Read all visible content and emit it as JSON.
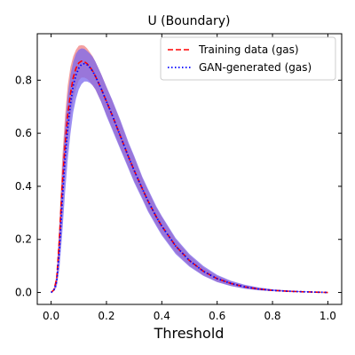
{
  "chart_data": {
    "type": "line",
    "title": "U (Boundary)",
    "xlabel": "Threshold",
    "ylabel": "",
    "xlim": [
      -0.05,
      1.05
    ],
    "ylim": [
      -0.045,
      0.975
    ],
    "xticks": [
      0.0,
      0.2,
      0.4,
      0.6,
      0.8,
      1.0
    ],
    "xtick_labels": [
      "0.0",
      "0.2",
      "0.4",
      "0.6",
      "0.8",
      "1.0"
    ],
    "yticks": [
      0.0,
      0.2,
      0.4,
      0.6,
      0.8
    ],
    "ytick_labels": [
      "0.0",
      "0.2",
      "0.4",
      "0.6",
      "0.8"
    ],
    "grid": false,
    "legend_position": "top-right",
    "x": [
      0.0,
      0.01,
      0.02,
      0.03,
      0.04,
      0.05,
      0.06,
      0.07,
      0.08,
      0.09,
      0.1,
      0.11,
      0.12,
      0.13,
      0.14,
      0.15,
      0.16,
      0.18,
      0.2,
      0.22,
      0.25,
      0.28,
      0.3,
      0.33,
      0.35,
      0.38,
      0.4,
      0.45,
      0.5,
      0.55,
      0.6,
      0.65,
      0.7,
      0.75,
      0.8,
      0.85,
      0.9,
      0.95,
      1.0
    ],
    "series": [
      {
        "name": "Training data (gas)",
        "style": "dashed",
        "color": "#ff0000",
        "band_color": "#f08080",
        "values": [
          0.0,
          0.01,
          0.05,
          0.2,
          0.4,
          0.55,
          0.67,
          0.75,
          0.81,
          0.845,
          0.865,
          0.872,
          0.87,
          0.862,
          0.85,
          0.835,
          0.815,
          0.77,
          0.72,
          0.67,
          0.59,
          0.51,
          0.46,
          0.39,
          0.345,
          0.285,
          0.25,
          0.175,
          0.12,
          0.08,
          0.052,
          0.034,
          0.021,
          0.013,
          0.008,
          0.005,
          0.003,
          0.0015,
          0.0
        ],
        "lower": [
          0.0,
          0.008,
          0.03,
          0.13,
          0.3,
          0.45,
          0.57,
          0.66,
          0.73,
          0.77,
          0.8,
          0.81,
          0.81,
          0.805,
          0.795,
          0.78,
          0.765,
          0.72,
          0.67,
          0.62,
          0.545,
          0.47,
          0.42,
          0.355,
          0.31,
          0.255,
          0.22,
          0.15,
          0.1,
          0.065,
          0.04,
          0.025,
          0.015,
          0.009,
          0.005,
          0.003,
          0.002,
          0.001,
          0.0
        ],
        "upper": [
          0.0,
          0.015,
          0.07,
          0.27,
          0.5,
          0.66,
          0.78,
          0.85,
          0.89,
          0.915,
          0.93,
          0.932,
          0.93,
          0.92,
          0.905,
          0.89,
          0.87,
          0.825,
          0.775,
          0.725,
          0.645,
          0.56,
          0.51,
          0.43,
          0.385,
          0.32,
          0.285,
          0.2,
          0.14,
          0.095,
          0.063,
          0.042,
          0.027,
          0.017,
          0.011,
          0.007,
          0.004,
          0.002,
          0.0
        ]
      },
      {
        "name": "GAN-generated (gas)",
        "style": "dotted",
        "color": "#0000ff",
        "band_color": "#7b68ee",
        "values": [
          0.0,
          0.008,
          0.04,
          0.16,
          0.34,
          0.5,
          0.62,
          0.71,
          0.78,
          0.82,
          0.845,
          0.86,
          0.862,
          0.858,
          0.848,
          0.834,
          0.815,
          0.77,
          0.72,
          0.67,
          0.59,
          0.51,
          0.46,
          0.39,
          0.345,
          0.285,
          0.25,
          0.175,
          0.12,
          0.08,
          0.052,
          0.034,
          0.021,
          0.013,
          0.008,
          0.005,
          0.003,
          0.0015,
          0.0
        ],
        "lower": [
          0.0,
          0.005,
          0.02,
          0.09,
          0.22,
          0.37,
          0.5,
          0.6,
          0.68,
          0.73,
          0.765,
          0.785,
          0.795,
          0.795,
          0.79,
          0.78,
          0.765,
          0.72,
          0.665,
          0.615,
          0.54,
          0.465,
          0.415,
          0.35,
          0.305,
          0.25,
          0.215,
          0.145,
          0.097,
          0.063,
          0.039,
          0.024,
          0.014,
          0.008,
          0.005,
          0.003,
          0.002,
          0.001,
          0.0
        ],
        "upper": [
          0.0,
          0.012,
          0.06,
          0.24,
          0.46,
          0.62,
          0.74,
          0.82,
          0.87,
          0.9,
          0.915,
          0.92,
          0.918,
          0.91,
          0.9,
          0.888,
          0.87,
          0.825,
          0.775,
          0.728,
          0.65,
          0.565,
          0.515,
          0.435,
          0.39,
          0.325,
          0.288,
          0.205,
          0.145,
          0.1,
          0.066,
          0.044,
          0.029,
          0.019,
          0.012,
          0.008,
          0.005,
          0.002,
          0.0
        ]
      }
    ]
  }
}
